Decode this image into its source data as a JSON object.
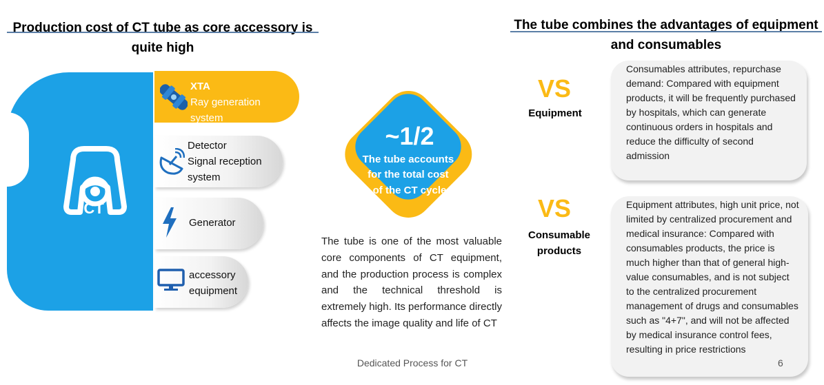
{
  "left_panel": {
    "title": "Production cost of CT tube as core accessory is quite high",
    "ct_label": "CT",
    "components": [
      {
        "name": "XTA",
        "description": "Ray generation system",
        "icon": "x-ray-tube-icon"
      },
      {
        "name": "Detector",
        "description": "Signal reception system",
        "icon": "satellite-dish-icon"
      },
      {
        "name": "Generator",
        "description": "",
        "icon": "lightning-bolt-icon"
      },
      {
        "name": "accessory equipment",
        "description": "",
        "icon": "monitor-icon"
      }
    ]
  },
  "center": {
    "ratio": "~1/2",
    "ratio_caption": "The tube accounts for the total cost of the CT cycle",
    "description": "The tube is one of the most valuable core components of CT equipment, and the production process is complex and the technical threshold is extremely high. Its performance directly affects the image quality and life of CT"
  },
  "right_panel": {
    "title": "The tube combines the advantages of equipment and consumables",
    "comparisons": [
      {
        "vs": "VS",
        "label": "Equipment",
        "text": "Consumables attributes, repurchase demand: Compared with equipment products, it will be frequently purchased by hospitals, which can generate continuous orders in hospitals and reduce the difficulty of second admission"
      },
      {
        "vs": "VS",
        "label": "Consumable products",
        "text": "Equipment attributes, high unit price, not limited by centralized procurement and medical insurance: Compared with consumables products, the price is much higher than that of general high-value consumables, and is not subject to the centralized procurement management of drugs and consumables such as \"4+7\", and will not be affected by medical insurance control fees, resulting in price restrictions"
      }
    ]
  },
  "footer": {
    "text": "Dedicated Process for CT",
    "page_number": "6"
  },
  "colors": {
    "blue": "#1ca1e6",
    "yellow": "#fbba15",
    "pill_grey": "#e6e6e6",
    "card_grey": "#f2f2f2"
  }
}
